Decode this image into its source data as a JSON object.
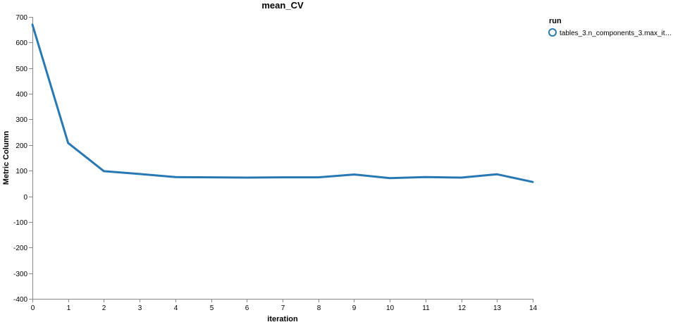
{
  "chart_data": {
    "type": "line",
    "title": "mean_CV",
    "xlabel": "iteration",
    "ylabel": "Metric Column",
    "xlim": [
      0,
      14
    ],
    "ylim": [
      -400,
      700
    ],
    "x_ticks": [
      0,
      1,
      2,
      3,
      4,
      5,
      6,
      7,
      8,
      9,
      10,
      11,
      12,
      13,
      14
    ],
    "y_ticks": [
      -400,
      -300,
      -200,
      -100,
      0,
      100,
      200,
      300,
      400,
      500,
      600,
      700
    ],
    "grid": false,
    "legend": {
      "title": "run",
      "placement": "top-right",
      "entries": [
        "tables_3.n_components_3.max_it…"
      ]
    },
    "series": [
      {
        "name": "tables_3.n_components_3.max_it…",
        "color": "#2878b4",
        "x": [
          0,
          1,
          2,
          3,
          4,
          5,
          6,
          7,
          8,
          9,
          10,
          11,
          12,
          13,
          14
        ],
        "values": [
          670,
          208,
          98,
          87,
          75,
          74,
          73,
          74,
          74,
          85,
          71,
          75,
          73,
          86,
          56
        ]
      }
    ]
  }
}
